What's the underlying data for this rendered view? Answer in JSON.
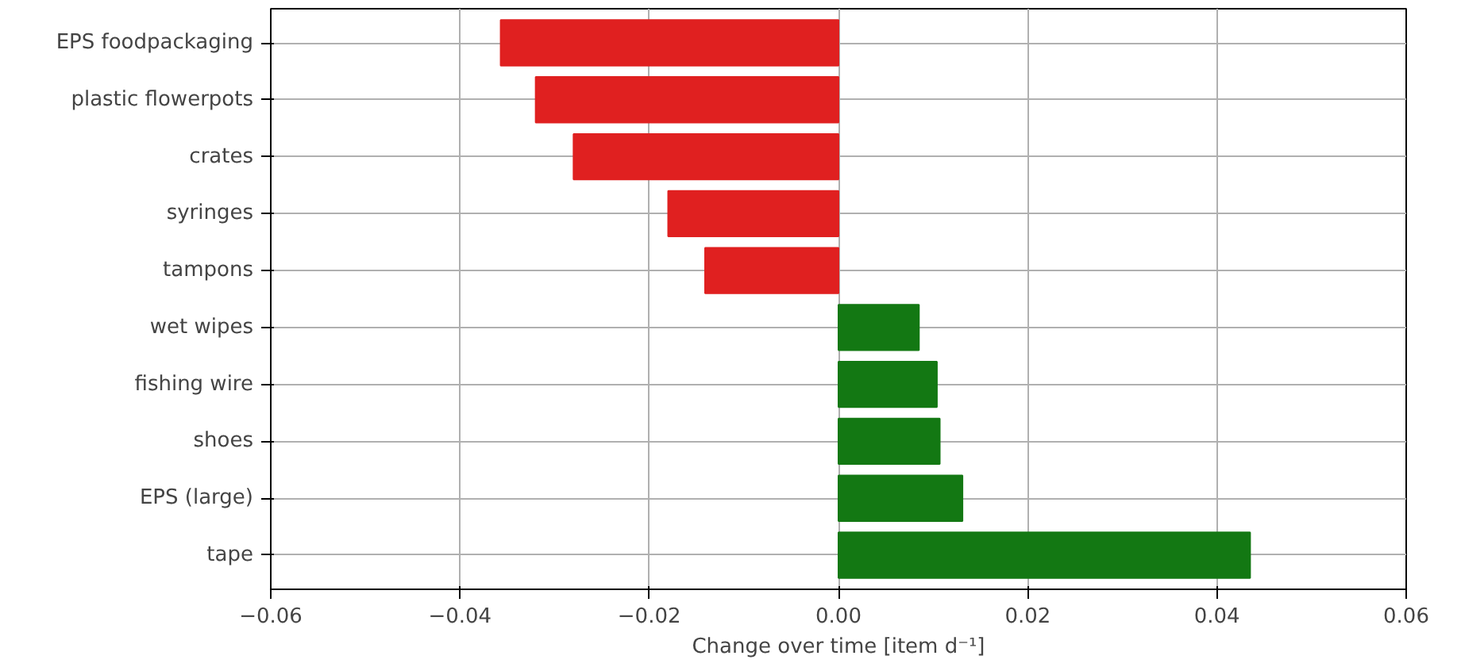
{
  "chart_data": {
    "type": "bar",
    "orientation": "horizontal",
    "xlabel": "Change over time [item d⁻¹]",
    "categories": [
      "EPS foodpackaging",
      "plastic flowerpots",
      "crates",
      "syringes",
      "tampons",
      "wet wipes",
      "fishing wire",
      "shoes",
      "EPS (large)",
      "tape"
    ],
    "values": [
      -0.0357,
      -0.032,
      -0.028,
      -0.018,
      -0.0141,
      0.0085,
      0.0104,
      0.0107,
      0.0131,
      0.0435
    ],
    "colors": [
      "#e02020",
      "#e02020",
      "#e02020",
      "#e02020",
      "#e02020",
      "#137813",
      "#137813",
      "#137813",
      "#137813",
      "#137813"
    ],
    "xlim": [
      -0.06,
      0.06
    ],
    "xticks": [
      {
        "value": -0.06,
        "label": "−0.06"
      },
      {
        "value": -0.04,
        "label": "−0.04"
      },
      {
        "value": -0.02,
        "label": "−0.02"
      },
      {
        "value": 0,
        "label": "0.00"
      },
      {
        "value": 0.02,
        "label": "0.02"
      },
      {
        "value": 0.04,
        "label": "0.04"
      },
      {
        "value": 0.06,
        "label": "0.06"
      }
    ],
    "grid": true
  }
}
